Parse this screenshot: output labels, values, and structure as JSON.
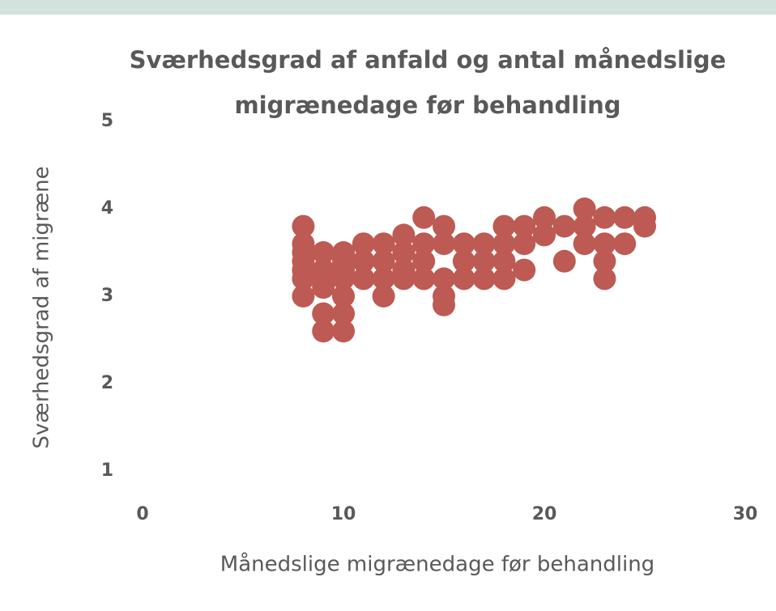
{
  "chart_data": {
    "type": "scatter",
    "title": "Sværhedsgrad af anfald og antal månedslige migrænedage før behandling",
    "xlabel": "Månedslige migrænedage før behandling",
    "ylabel": "Sværhedsgrad af migræne",
    "series": [
      {
        "name": "Sværhedsgrad af migræne",
        "color": "#bd5a53",
        "x": [
          8,
          8,
          8,
          8,
          8,
          8,
          8,
          9,
          9,
          9,
          9,
          9,
          9,
          10,
          10,
          10,
          10,
          10,
          10,
          10,
          11,
          11,
          11,
          12,
          12,
          12,
          12,
          13,
          13,
          13,
          13,
          14,
          14,
          14,
          14,
          15,
          15,
          15,
          15,
          15,
          16,
          16,
          16,
          17,
          17,
          17,
          18,
          18,
          18,
          18,
          19,
          19,
          19,
          20,
          20,
          21,
          21,
          22,
          22,
          22,
          23,
          23,
          23,
          23,
          24,
          24,
          25,
          25
        ],
        "y": [
          3.8,
          3.6,
          3.5,
          3.4,
          3.3,
          3.2,
          3.0,
          3.5,
          3.3,
          3.2,
          3.1,
          2.8,
          2.6,
          3.5,
          3.4,
          3.3,
          3.2,
          3.0,
          2.8,
          2.6,
          3.6,
          3.4,
          3.2,
          3.6,
          3.4,
          3.2,
          3.0,
          3.7,
          3.5,
          3.3,
          3.2,
          3.9,
          3.6,
          3.4,
          3.2,
          3.8,
          3.6,
          3.2,
          3.0,
          2.9,
          3.6,
          3.4,
          3.2,
          3.6,
          3.4,
          3.2,
          3.8,
          3.6,
          3.4,
          3.2,
          3.8,
          3.6,
          3.3,
          3.9,
          3.7,
          3.8,
          3.4,
          4.0,
          3.8,
          3.6,
          3.9,
          3.6,
          3.4,
          3.2,
          3.9,
          3.6,
          3.9,
          3.8
        ]
      }
    ],
    "xlim": [
      0,
      30
    ],
    "xticks": [
      0,
      10,
      20,
      30
    ],
    "ylim": [
      1,
      5
    ],
    "yticks": [
      1,
      2,
      3,
      4,
      5
    ]
  }
}
